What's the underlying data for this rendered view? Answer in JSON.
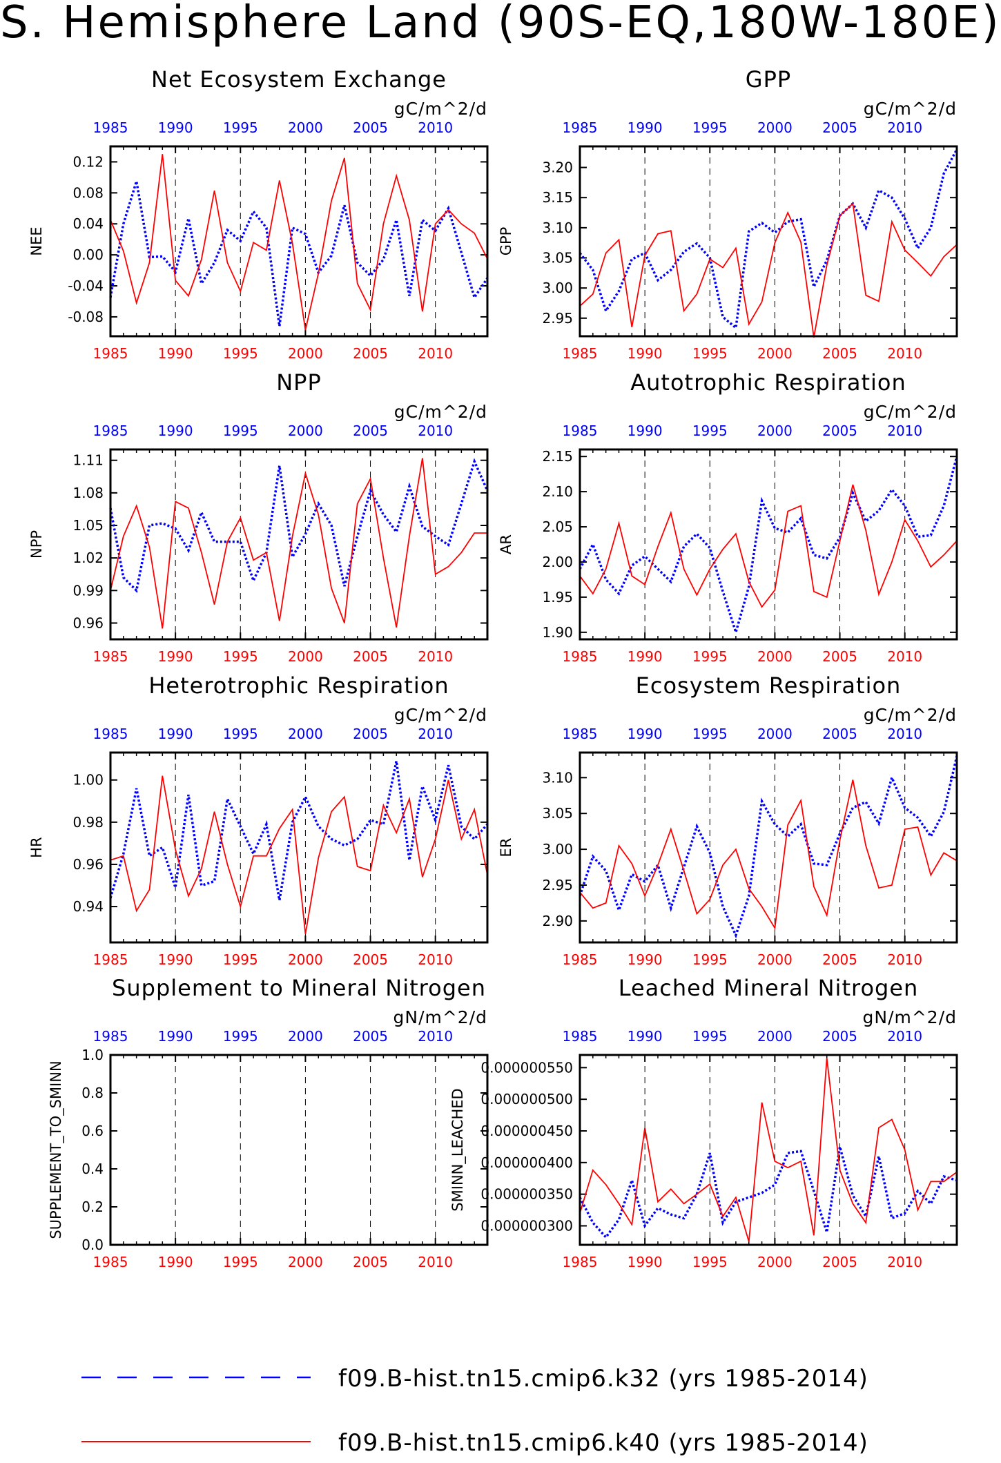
{
  "title": "S. Hemisphere Land (90S-EQ,180W-180E)",
  "colors": {
    "case1": "#0000ff",
    "case2": "#ff0000",
    "axis": "#000000",
    "grid": "#000000"
  },
  "legend": {
    "case1_label": "f09.B-hist.tn15.cmip6.k32 (yrs 1985-2014)",
    "case2_label": "f09.B-hist.tn15.cmip6.k40 (yrs 1985-2014)"
  },
  "years": [
    1985,
    1986,
    1987,
    1988,
    1989,
    1990,
    1991,
    1992,
    1993,
    1994,
    1995,
    1996,
    1997,
    1998,
    1999,
    2000,
    2001,
    2002,
    2003,
    2004,
    2005,
    2006,
    2007,
    2008,
    2009,
    2010,
    2011,
    2012,
    2013,
    2014
  ],
  "x_ticks": [
    "1985",
    "1990",
    "1995",
    "2000",
    "2005",
    "2010"
  ],
  "chart_data": [
    {
      "type": "line",
      "title": "Net Ecosystem Exchange",
      "ylabel": "NEE",
      "units": "gC/m^2/d",
      "ylim": [
        -0.105,
        0.14
      ],
      "ytick_labels": [
        "-0.08",
        "-0.04",
        "0.00",
        "0.04",
        "0.08",
        "0.12"
      ],
      "yticks": [
        -0.08,
        -0.04,
        0.0,
        0.04,
        0.08,
        0.12
      ],
      "series": [
        {
          "values": [
            -0.055,
            0.04,
            0.095,
            -0.003,
            -0.002,
            -0.022,
            0.047,
            -0.037,
            -0.01,
            0.032,
            0.018,
            0.056,
            0.035,
            -0.092,
            0.035,
            0.027,
            -0.023,
            -0.001,
            0.064,
            -0.01,
            -0.027,
            -0.006,
            0.045,
            -0.053,
            0.045,
            0.031,
            0.06,
            0.003,
            -0.055,
            -0.03
          ]
        },
        {
          "values": [
            0.045,
            0.005,
            -0.062,
            -0.01,
            0.13,
            -0.033,
            -0.053,
            -0.006,
            0.083,
            -0.01,
            -0.047,
            0.016,
            0.006,
            0.096,
            0.015,
            -0.097,
            -0.024,
            0.07,
            0.125,
            -0.037,
            -0.071,
            0.04,
            0.102,
            0.045,
            -0.073,
            0.04,
            0.058,
            0.04,
            0.028,
            -0.005
          ]
        }
      ]
    },
    {
      "type": "line",
      "title": "GPP",
      "ylabel": "GPP",
      "units": "gC/m^2/d",
      "ylim": [
        2.92,
        3.235
      ],
      "ytick_labels": [
        "2.95",
        "3.00",
        "3.05",
        "3.10",
        "3.15",
        "3.20"
      ],
      "yticks": [
        2.95,
        3.0,
        3.05,
        3.1,
        3.15,
        3.2
      ],
      "series": [
        {
          "values": [
            3.058,
            3.03,
            2.962,
            2.995,
            3.048,
            3.058,
            3.013,
            3.03,
            3.06,
            3.074,
            3.05,
            2.952,
            2.934,
            3.094,
            3.108,
            3.092,
            3.11,
            3.114,
            3.002,
            3.046,
            3.12,
            3.14,
            3.1,
            3.162,
            3.15,
            3.115,
            3.066,
            3.1,
            3.19,
            3.23
          ]
        },
        {
          "values": [
            2.97,
            2.99,
            3.058,
            3.08,
            2.935,
            3.054,
            3.09,
            3.095,
            2.962,
            2.99,
            3.048,
            3.034,
            3.066,
            2.94,
            2.977,
            3.075,
            3.125,
            3.076,
            2.918,
            3.038,
            3.12,
            3.14,
            2.988,
            2.978,
            3.11,
            3.063,
            3.042,
            3.02,
            3.052,
            3.072
          ]
        }
      ]
    },
    {
      "type": "line",
      "title": "NPP",
      "ylabel": "NPP",
      "units": "gC/m^2/d",
      "ylim": [
        0.945,
        1.12
      ],
      "ytick_labels": [
        "0.96",
        "0.99",
        "1.02",
        "1.05",
        "1.08",
        "1.11"
      ],
      "yticks": [
        0.96,
        0.99,
        1.02,
        1.05,
        1.08,
        1.11
      ],
      "series": [
        {
          "values": [
            1.066,
            1.002,
            0.99,
            1.05,
            1.052,
            1.047,
            1.027,
            1.062,
            1.035,
            1.035,
            1.035,
            0.999,
            1.025,
            1.105,
            1.021,
            1.042,
            1.07,
            1.05,
            0.994,
            1.04,
            1.082,
            1.06,
            1.044,
            1.086,
            1.049,
            1.04,
            1.032,
            1.07,
            1.109,
            1.082
          ]
        },
        {
          "values": [
            0.99,
            1.04,
            1.068,
            1.03,
            0.955,
            1.072,
            1.066,
            1.025,
            0.977,
            1.035,
            1.057,
            1.018,
            1.025,
            0.962,
            1.04,
            1.098,
            1.06,
            0.992,
            0.96,
            1.07,
            1.093,
            1.02,
            0.956,
            1.04,
            1.112,
            1.005,
            1.012,
            1.025,
            1.043,
            1.043
          ]
        }
      ]
    },
    {
      "type": "line",
      "title": "Autotrophic Respiration",
      "ylabel": "AR",
      "units": "gC/m^2/d",
      "ylim": [
        1.89,
        2.16
      ],
      "ytick_labels": [
        "1.90",
        "1.95",
        "2.00",
        "2.05",
        "2.10",
        "2.15"
      ],
      "yticks": [
        1.9,
        1.95,
        2.0,
        2.05,
        2.1,
        2.15
      ],
      "series": [
        {
          "values": [
            1.99,
            2.025,
            1.975,
            1.955,
            1.995,
            2.008,
            1.99,
            1.972,
            2.022,
            2.04,
            2.02,
            1.958,
            1.9,
            1.965,
            2.087,
            2.048,
            2.042,
            2.062,
            2.01,
            2.005,
            2.035,
            2.098,
            2.058,
            2.073,
            2.103,
            2.08,
            2.036,
            2.038,
            2.08,
            2.15
          ]
        },
        {
          "values": [
            1.98,
            1.955,
            1.99,
            2.055,
            1.98,
            1.968,
            2.022,
            2.07,
            1.99,
            1.953,
            1.99,
            2.018,
            2.04,
            1.972,
            1.936,
            1.96,
            2.072,
            2.08,
            1.958,
            1.95,
            2.03,
            2.11,
            2.045,
            1.954,
            2.0,
            2.06,
            2.03,
            1.993,
            2.01,
            2.03
          ]
        }
      ]
    },
    {
      "type": "line",
      "title": "Heterotrophic Respiration",
      "ylabel": "HR",
      "units": "gC/m^2/d",
      "ylim": [
        0.923,
        1.013
      ],
      "ytick_labels": [
        "0.94",
        "0.96",
        "0.98",
        "1.00"
      ],
      "yticks": [
        0.94,
        0.96,
        0.98,
        1.0
      ],
      "series": [
        {
          "values": [
            0.944,
            0.965,
            0.996,
            0.964,
            0.968,
            0.949,
            0.993,
            0.95,
            0.952,
            0.991,
            0.978,
            0.965,
            0.979,
            0.943,
            0.98,
            0.992,
            0.978,
            0.972,
            0.969,
            0.972,
            0.981,
            0.979,
            1.009,
            0.962,
            0.997,
            0.981,
            1.007,
            0.978,
            0.972,
            0.979
          ]
        },
        {
          "values": [
            0.962,
            0.964,
            0.938,
            0.948,
            1.002,
            0.967,
            0.945,
            0.958,
            0.985,
            0.96,
            0.94,
            0.964,
            0.964,
            0.977,
            0.986,
            0.927,
            0.963,
            0.985,
            0.992,
            0.959,
            0.957,
            0.988,
            0.975,
            0.991,
            0.954,
            0.972,
            1.0,
            0.972,
            0.986,
            0.955
          ]
        }
      ]
    },
    {
      "type": "line",
      "title": "Ecosystem Respiration",
      "ylabel": "ER",
      "units": "gC/m^2/d",
      "ylim": [
        2.87,
        3.135
      ],
      "ytick_labels": [
        "2.90",
        "2.95",
        "3.00",
        "3.05",
        "3.10"
      ],
      "yticks": [
        2.9,
        2.95,
        3.0,
        3.05,
        3.1
      ],
      "series": [
        {
          "values": [
            2.935,
            2.99,
            2.97,
            2.915,
            2.965,
            2.955,
            2.978,
            2.918,
            2.975,
            3.032,
            2.995,
            2.92,
            2.88,
            2.935,
            3.067,
            3.035,
            3.018,
            3.035,
            2.98,
            2.978,
            3.022,
            3.058,
            3.066,
            3.036,
            3.1,
            3.058,
            3.044,
            3.018,
            3.052,
            3.13
          ]
        },
        {
          "values": [
            2.94,
            2.918,
            2.925,
            3.005,
            2.98,
            2.935,
            2.978,
            3.028,
            2.97,
            2.91,
            2.93,
            2.978,
            3.0,
            2.945,
            2.92,
            2.89,
            3.034,
            3.068,
            2.948,
            2.908,
            3.013,
            3.097,
            3.005,
            2.946,
            2.95,
            3.028,
            3.031,
            2.964,
            2.995,
            2.984
          ]
        }
      ]
    },
    {
      "type": "line",
      "title": "Supplement to Mineral Nitrogen",
      "ylabel": "SUPPLEMENT_TO_SMINN",
      "units": "gN/m^2/d",
      "ylim": [
        0.0,
        1.0
      ],
      "ytick_labels": [
        "0.0",
        "0.2",
        "0.4",
        "0.6",
        "0.8",
        "1.0"
      ],
      "yticks": [
        0.0,
        0.2,
        0.4,
        0.6,
        0.8,
        1.0
      ],
      "series": []
    },
    {
      "type": "line",
      "title": "Leached Mineral Nitrogen",
      "ylabel": "SMINN_LEACHED",
      "units": "gN/m^2/d",
      "ylim": [
        2.7e-07,
        5.7e-07
      ],
      "ytick_labels": [
        "0.000000300",
        "0.000000350",
        "0.000000400",
        "0.000000450",
        "0.000000500",
        "0.000000550"
      ],
      "yticks": [
        3e-07,
        3.5e-07,
        4e-07,
        4.5e-07,
        5e-07,
        5.5e-07
      ],
      "series": [
        {
          "values": [
            3.45e-07,
            3.05e-07,
            2.82e-07,
            3.1e-07,
            3.72e-07,
            3e-07,
            3.28e-07,
            3.18e-07,
            3.12e-07,
            3.5e-07,
            4.15e-07,
            3.05e-07,
            3.38e-07,
            3.45e-07,
            3.52e-07,
            3.65e-07,
            4.15e-07,
            4.18e-07,
            3.55e-07,
            2.9e-07,
            4.25e-07,
            3.48e-07,
            3.15e-07,
            4.1e-07,
            3.12e-07,
            3.2e-07,
            3.55e-07,
            3.35e-07,
            3.78e-07,
            3.72e-07
          ]
        },
        {
          "values": [
            3.2e-07,
            3.88e-07,
            3.65e-07,
            3.35e-07,
            3.02e-07,
            4.55e-07,
            3.38e-07,
            3.58e-07,
            3.35e-07,
            3.5e-07,
            3.66e-07,
            3.15e-07,
            3.45e-07,
            2.75e-07,
            4.95e-07,
            4.02e-07,
            3.92e-07,
            4.02e-07,
            2.85e-07,
            5.65e-07,
            3.88e-07,
            3.35e-07,
            3.05e-07,
            4.55e-07,
            4.68e-07,
            4.2e-07,
            3.25e-07,
            3.7e-07,
            3.7e-07,
            3.85e-07
          ]
        }
      ]
    }
  ]
}
